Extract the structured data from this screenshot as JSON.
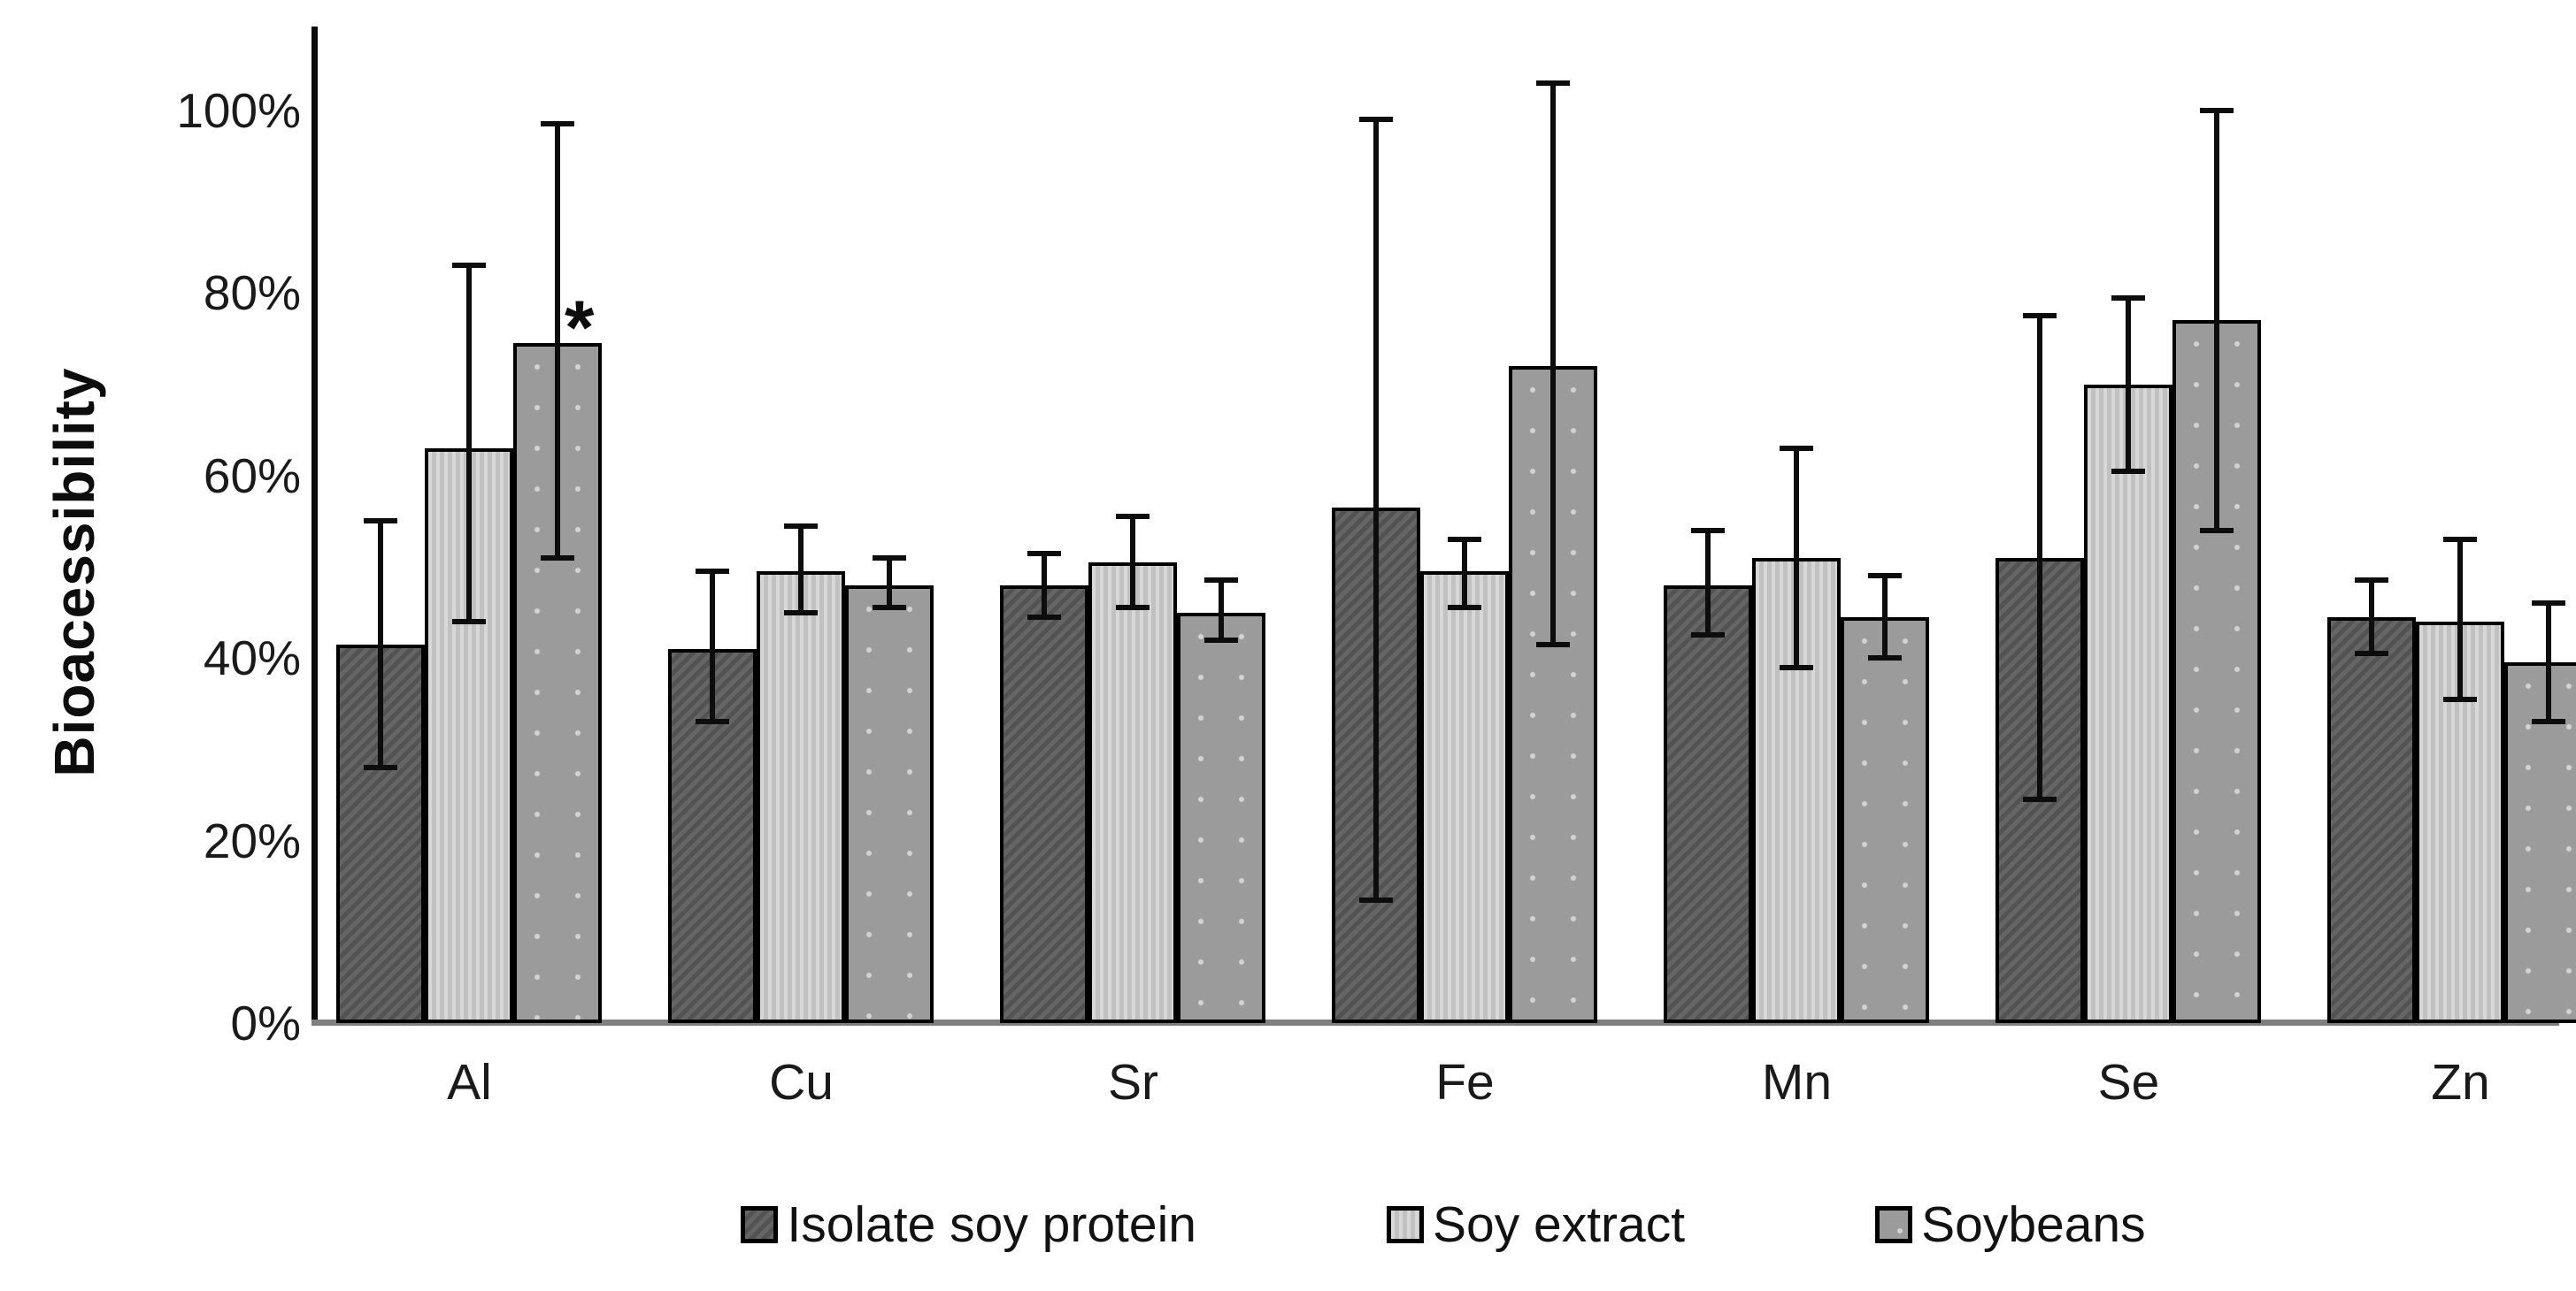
{
  "chart_data": {
    "type": "bar",
    "title": "",
    "ylabel": "Bioacessibility",
    "xlabel": "",
    "categories": [
      "Al",
      "Cu",
      "Sr",
      "Fe",
      "Mn",
      "Se",
      "Zn"
    ],
    "y_ticks": [
      "0%",
      "20%",
      "40%",
      "60%",
      "80%",
      "100%"
    ],
    "y_tick_values": [
      0,
      20,
      40,
      60,
      80,
      100
    ],
    "ylim": [
      0,
      109
    ],
    "grid": "off",
    "legend_position": "bottom",
    "series": [
      {
        "name": "Isolate soy protein",
        "color": "#595959",
        "values": [
          41.5,
          41,
          48,
          56.5,
          48,
          51,
          44.5
        ],
        "error_low": [
          28,
          33,
          44.5,
          13.5,
          42.5,
          24.5,
          40.5
        ],
        "error_high": [
          55,
          49.5,
          51.5,
          99,
          54,
          77.5,
          48.5
        ]
      },
      {
        "name": "Soy extract",
        "color": "#c9c9c9",
        "values": [
          63,
          49.5,
          50.5,
          49.5,
          51,
          70,
          44
        ],
        "error_low": [
          44,
          45,
          45.5,
          45.5,
          39,
          60.5,
          35.5
        ],
        "error_high": [
          83,
          54.5,
          55.5,
          53,
          63,
          79.5,
          53
        ]
      },
      {
        "name": "Soybeans",
        "color": "#9b9b9b",
        "values": [
          74.5,
          48,
          45,
          72,
          44.5,
          77,
          39.5
        ],
        "error_low": [
          51,
          45.5,
          42,
          41.5,
          40,
          54,
          33
        ],
        "error_high": [
          98.5,
          51,
          48.5,
          103,
          49,
          100,
          46
        ]
      }
    ],
    "annotations": [
      {
        "series": "Soybeans",
        "category": "Al",
        "text": "*"
      }
    ]
  },
  "legend": {
    "items": [
      {
        "label": "Isolate soy protein",
        "color": "#595959"
      },
      {
        "label": "Soy extract",
        "color": "#c9c9c9"
      },
      {
        "label": "Soybeans",
        "color": "#9b9b9b"
      }
    ]
  }
}
